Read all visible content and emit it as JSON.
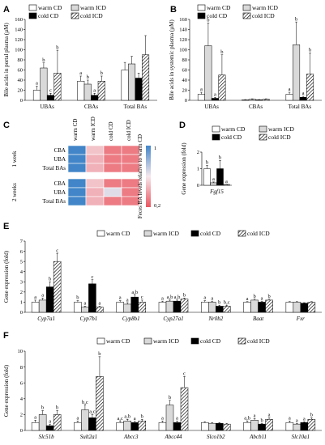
{
  "colors": {
    "bar_edge": "#000000",
    "white": "#ffffff",
    "gray": "#d9d9d9",
    "black": "#000000"
  },
  "legend": [
    "warm CD",
    "warm ICD",
    "cold CD",
    "cold ICD"
  ],
  "chart_data": [
    {
      "panel": "A",
      "type": "bar",
      "ylabel": "Bile acids in portal plasma (µM)",
      "ylim": [
        0,
        160
      ],
      "yticks": [
        0,
        20,
        40,
        60,
        80,
        100,
        120,
        140,
        160
      ],
      "categories": [
        "UBAs",
        "CBAs",
        "Total BAs"
      ],
      "series": [
        {
          "name": "warm CD",
          "values": [
            20,
            38,
            60
          ],
          "errors": [
            8,
            10,
            15
          ],
          "sig": [
            "a",
            "a",
            ""
          ]
        },
        {
          "name": "warm ICD",
          "values": [
            64,
            32,
            72
          ],
          "errors": [
            10,
            8,
            15
          ],
          "sig": [
            "b",
            "b",
            ""
          ]
        },
        {
          "name": "cold CD",
          "values": [
            10,
            10,
            44
          ],
          "errors": [
            4,
            4,
            10
          ],
          "sig": [
            "c",
            "a",
            ""
          ]
        },
        {
          "name": "cold ICD",
          "values": [
            54,
            38,
            90
          ],
          "errors": [
            45,
            10,
            38
          ],
          "sig": [
            "b",
            "b",
            ""
          ]
        }
      ]
    },
    {
      "panel": "B",
      "type": "bar",
      "ylabel": "Bile acids in systemic plasma (µM)",
      "ylim": [
        0,
        160
      ],
      "yticks": [
        0,
        20,
        40,
        60,
        80,
        100,
        120,
        140,
        160
      ],
      "categories": [
        "UBAs",
        "CBAs",
        "Total BAs"
      ],
      "series": [
        {
          "name": "warm CD",
          "values": [
            12,
            1,
            12
          ],
          "errors": [
            4,
            0.5,
            4
          ],
          "sig": [
            "a",
            "",
            "a"
          ]
        },
        {
          "name": "warm ICD",
          "values": [
            108,
            2,
            110
          ],
          "errors": [
            45,
            1,
            45
          ],
          "sig": [
            "b",
            "",
            "b"
          ]
        },
        {
          "name": "cold CD",
          "values": [
            4,
            1,
            6
          ],
          "errors": [
            2,
            0.5,
            2
          ],
          "sig": [
            "a",
            "",
            "a"
          ]
        },
        {
          "name": "cold ICD",
          "values": [
            50,
            2,
            52
          ],
          "errors": [
            40,
            1,
            42
          ],
          "sig": [
            "b",
            "",
            "b"
          ]
        }
      ]
    },
    {
      "panel": "C",
      "type": "heatmap",
      "columns": [
        "warm CD",
        "warm ICD",
        "cold CD",
        "cold ICD"
      ],
      "rows": [
        "CBA",
        "UBA",
        "Total BAs"
      ],
      "groups": [
        {
          "label": "1 week",
          "values": [
            [
              1.0,
              0.5,
              0.3,
              0.3
            ],
            [
              1.0,
              0.45,
              0.3,
              0.3
            ],
            [
              1.0,
              0.45,
              0.3,
              0.3
            ]
          ]
        },
        {
          "label": "2 weeks",
          "values": [
            [
              1.0,
              0.5,
              0.3,
              0.3
            ],
            [
              1.0,
              0.45,
              0.65,
              0.3
            ],
            [
              1.0,
              0.45,
              0.3,
              0.3
            ]
          ]
        }
      ],
      "colorbar_label": "Feces BA levels relative to warm CD",
      "colorbar_ticks": [
        "1",
        "0,2"
      ],
      "colorbar_range": [
        0.2,
        1
      ]
    },
    {
      "panel": "D",
      "type": "bar",
      "ylabel": "Gene expression (fold)",
      "ylim": [
        0,
        2
      ],
      "yticks": [
        0,
        1,
        2
      ],
      "categories": [
        "Fgf15"
      ],
      "series": [
        {
          "name": "warm CD",
          "values": [
            1.0
          ],
          "errors": [
            0.2
          ],
          "sig": [
            "b"
          ]
        },
        {
          "name": "warm ICD",
          "values": [
            0.15
          ],
          "errors": [
            0.05
          ],
          "sig": [
            "a"
          ]
        },
        {
          "name": "cold CD",
          "values": [
            1.0
          ],
          "errors": [
            0.5
          ],
          "sig": [
            "b"
          ]
        },
        {
          "name": "cold ICD",
          "values": [
            0.05
          ],
          "errors": [
            0.02
          ],
          "sig": [
            "a"
          ]
        }
      ]
    },
    {
      "panel": "E",
      "type": "bar",
      "ylabel": "Gene expression (fold)",
      "ylim": [
        0,
        7
      ],
      "yticks": [
        0,
        1,
        2,
        3,
        4,
        5,
        6,
        7
      ],
      "categories": [
        "Cyp7a1",
        "Cyp7b1",
        "Cyp8b1",
        "Cyp27a1",
        "Nr0b2",
        "Baat",
        "Fxr"
      ],
      "series": [
        {
          "name": "warm CD",
          "values": [
            1.0,
            1.0,
            1.0,
            1.0,
            1.0,
            1.0,
            1.0
          ],
          "errors": [
            0.2,
            0.15,
            0.15,
            0.1,
            0.15,
            0.05,
            0.05
          ],
          "sig": [
            "a",
            "b",
            "a",
            "a",
            "a",
            "a",
            ""
          ]
        },
        {
          "name": "warm ICD",
          "values": [
            1.2,
            0.5,
            0.8,
            1.1,
            1.0,
            1.2,
            1.0
          ],
          "errors": [
            0.2,
            0.1,
            0.15,
            0.1,
            0.1,
            0.1,
            0.05
          ],
          "sig": [
            "a",
            "a",
            "a",
            "a,b",
            "a",
            "b",
            ""
          ]
        },
        {
          "name": "cold CD",
          "values": [
            2.5,
            2.8,
            1.5,
            1.1,
            0.6,
            1.0,
            0.9
          ],
          "errors": [
            0.5,
            0.4,
            0.2,
            0.1,
            0.1,
            0.1,
            0.05
          ],
          "sig": [
            "b",
            "c",
            "a,b",
            "a,b",
            "b",
            "a",
            ""
          ]
        },
        {
          "name": "cold ICD",
          "values": [
            5.0,
            0.5,
            1.0,
            1.3,
            0.6,
            1.2,
            1.0
          ],
          "errors": [
            0.8,
            0.1,
            0.2,
            0.1,
            0.1,
            0.1,
            0.05
          ],
          "sig": [
            "c",
            "a",
            "c",
            "b",
            "b,c",
            "b",
            ""
          ]
        }
      ]
    },
    {
      "panel": "F",
      "type": "bar",
      "ylabel": "Gene expression (fold)",
      "ylim": [
        0,
        10
      ],
      "yticks": [
        0,
        2,
        4,
        6,
        8,
        10
      ],
      "categories": [
        "Slc51b",
        "Sult2a1",
        "Abcc3",
        "Abcc44",
        "Slco1b2",
        "Abcb11",
        "Slc10a1"
      ],
      "series": [
        {
          "name": "warm CD",
          "values": [
            1.0,
            1.0,
            1.0,
            1.0,
            1.0,
            1.0,
            1.0
          ],
          "errors": [
            0.3,
            0.2,
            0.15,
            0.2,
            0.1,
            0.2,
            0.2
          ],
          "sig": [
            "a",
            "a",
            "a,c",
            "a",
            "",
            "a,b",
            "a"
          ]
        },
        {
          "name": "warm ICD",
          "values": [
            2.0,
            2.6,
            1.2,
            3.2,
            0.9,
            1.3,
            0.8
          ],
          "errors": [
            0.5,
            0.6,
            0.2,
            0.6,
            0.1,
            0.2,
            0.1
          ],
          "sig": [
            "b",
            "b,c",
            "a,b",
            "b",
            "",
            "a",
            "a"
          ]
        },
        {
          "name": "cold CD",
          "values": [
            0.6,
            1.6,
            1.0,
            1.0,
            0.9,
            0.8,
            1.0
          ],
          "errors": [
            0.2,
            0.4,
            0.15,
            0.2,
            0.1,
            0.1,
            0.1
          ],
          "sig": [
            "a",
            "a,c",
            "a",
            "a",
            "",
            "b",
            "a"
          ]
        },
        {
          "name": "cold ICD",
          "values": [
            2.0,
            6.8,
            1.2,
            5.4,
            0.8,
            1.4,
            1.4
          ],
          "errors": [
            0.5,
            2.5,
            0.2,
            1.4,
            0.1,
            0.2,
            0.2
          ],
          "sig": [
            "b",
            "b",
            "b",
            "c",
            "",
            "a",
            "b"
          ]
        }
      ]
    }
  ]
}
